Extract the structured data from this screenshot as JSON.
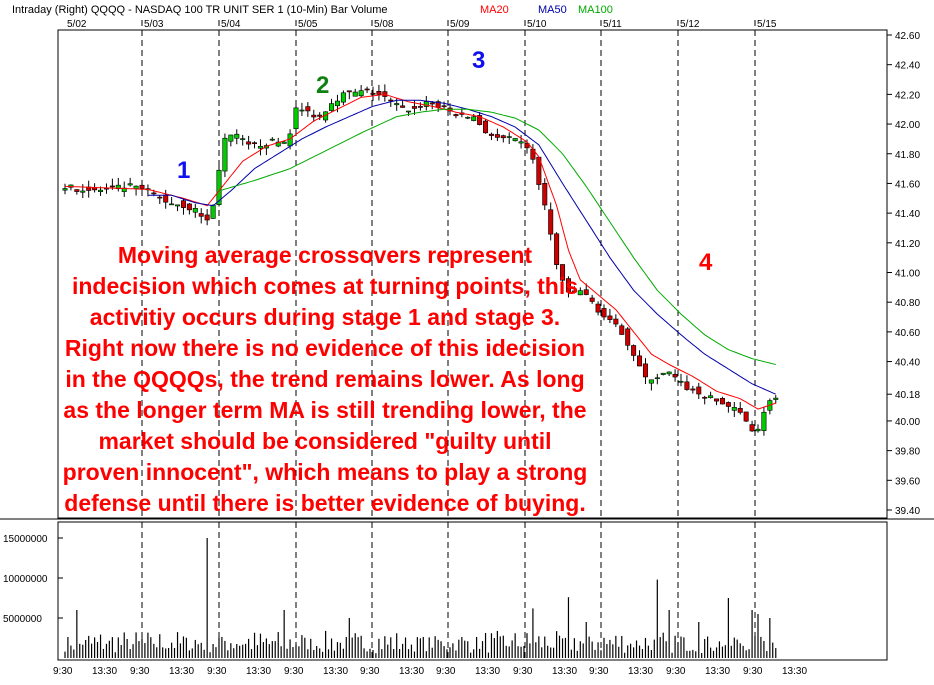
{
  "header": {
    "left": "Intraday  (Right)  QQQQ - NASDAQ 100 TR UNIT SER 1  (10-Min)  Bar  Volume",
    "ma_labels": [
      {
        "text": "MA20",
        "color": "#ff0000"
      },
      {
        "text": "MA50",
        "color": "#0000aa"
      },
      {
        "text": "MA100",
        "color": "#00aa00"
      }
    ]
  },
  "chart_data": {
    "type": "candlestick",
    "title": "Intraday (Right) QQQQ - NASDAQ 100 TR UNIT SER 1 (10-Min) Bar Volume",
    "date_labels": [
      "5/02",
      "5/03",
      "5/04",
      "5/05",
      "5/08",
      "5/09",
      "5/10",
      "5/11",
      "5/12",
      "5/15"
    ],
    "time_labels": [
      "9:30",
      "13:30",
      "9:30",
      "13:30",
      "9:30",
      "13:30",
      "9:30",
      "13:30",
      "9:30",
      "13:30",
      "9:30",
      "13:30",
      "9:30",
      "13:30",
      "9:30",
      "13:30",
      "9:30",
      "13:30",
      "9:30",
      "13:30"
    ],
    "price_axis": {
      "min": 39.4,
      "max": 42.6,
      "ticks": [
        "42.60",
        "42.40",
        "42.20",
        "42.00",
        "41.80",
        "41.60",
        "41.40",
        "41.20",
        "41.00",
        "40.80",
        "40.60",
        "40.40",
        "40.18",
        "40.00",
        "39.80",
        "39.60",
        "39.40"
      ]
    },
    "volume_axis": {
      "min": 0,
      "max": 17000000,
      "ticks": [
        "15000000",
        "10000000",
        "5000000"
      ]
    },
    "price_path": [
      [
        0,
        41.58
      ],
      [
        6,
        41.55
      ],
      [
        12,
        41.58
      ],
      [
        15,
        41.55
      ],
      [
        18,
        41.48
      ],
      [
        21,
        41.45
      ],
      [
        23,
        41.42
      ],
      [
        25,
        41.35
      ],
      [
        26,
        41.45
      ],
      [
        27,
        41.7
      ],
      [
        28,
        41.9
      ],
      [
        30,
        41.92
      ],
      [
        32,
        41.85
      ],
      [
        36,
        41.88
      ],
      [
        38,
        41.88
      ],
      [
        39,
        41.95
      ],
      [
        40,
        42.1
      ],
      [
        42,
        42.08
      ],
      [
        44,
        42.05
      ],
      [
        46,
        42.15
      ],
      [
        48,
        42.2
      ],
      [
        52,
        42.22
      ],
      [
        54,
        42.2
      ],
      [
        56,
        42.15
      ],
      [
        58,
        42.1
      ],
      [
        60,
        42.1
      ],
      [
        62,
        42.15
      ],
      [
        64,
        42.12
      ],
      [
        68,
        42.05
      ],
      [
        70,
        42.05
      ],
      [
        72,
        41.95
      ],
      [
        74,
        41.9
      ],
      [
        76,
        41.9
      ],
      [
        79,
        41.85
      ],
      [
        80,
        41.75
      ],
      [
        82,
        41.45
      ],
      [
        84,
        41.05
      ],
      [
        86,
        40.85
      ],
      [
        88,
        40.88
      ],
      [
        90,
        40.8
      ],
      [
        92,
        40.7
      ],
      [
        95,
        40.6
      ],
      [
        97,
        40.45
      ],
      [
        99,
        40.28
      ],
      [
        101,
        40.3
      ],
      [
        103,
        40.32
      ],
      [
        105,
        40.25
      ],
      [
        107,
        40.2
      ],
      [
        110,
        40.15
      ],
      [
        113,
        40.1
      ],
      [
        115,
        40.05
      ],
      [
        117,
        39.95
      ],
      [
        118,
        39.95
      ],
      [
        119,
        40.05
      ],
      [
        120,
        40.15
      ]
    ],
    "series": [
      {
        "name": "MA20",
        "color": "#ff0000",
        "values": [
          [
            0,
            41.58
          ],
          [
            14,
            41.56
          ],
          [
            20,
            41.5
          ],
          [
            24,
            41.45
          ],
          [
            27,
            41.6
          ],
          [
            30,
            41.75
          ],
          [
            34,
            41.85
          ],
          [
            38,
            41.9
          ],
          [
            42,
            42.02
          ],
          [
            46,
            42.1
          ],
          [
            50,
            42.18
          ],
          [
            54,
            42.2
          ],
          [
            58,
            42.15
          ],
          [
            62,
            42.12
          ],
          [
            66,
            42.08
          ],
          [
            70,
            42.05
          ],
          [
            74,
            41.98
          ],
          [
            78,
            41.88
          ],
          [
            80,
            41.78
          ],
          [
            83,
            41.45
          ],
          [
            85,
            41.15
          ],
          [
            87,
            40.95
          ],
          [
            90,
            40.85
          ],
          [
            93,
            40.75
          ],
          [
            96,
            40.6
          ],
          [
            99,
            40.45
          ],
          [
            102,
            40.38
          ],
          [
            106,
            40.3
          ],
          [
            110,
            40.2
          ],
          [
            114,
            40.15
          ],
          [
            117,
            40.08
          ],
          [
            120,
            40.12
          ]
        ]
      },
      {
        "name": "MA50",
        "color": "#0000aa",
        "values": [
          [
            14,
            41.52
          ],
          [
            18,
            41.52
          ],
          [
            22,
            41.47
          ],
          [
            25,
            41.45
          ],
          [
            28,
            41.55
          ],
          [
            32,
            41.7
          ],
          [
            36,
            41.8
          ],
          [
            40,
            41.9
          ],
          [
            44,
            41.98
          ],
          [
            48,
            42.05
          ],
          [
            52,
            42.12
          ],
          [
            56,
            42.16
          ],
          [
            60,
            42.16
          ],
          [
            64,
            42.14
          ],
          [
            68,
            42.1
          ],
          [
            72,
            42.05
          ],
          [
            76,
            41.98
          ],
          [
            80,
            41.86
          ],
          [
            84,
            41.6
          ],
          [
            88,
            41.35
          ],
          [
            92,
            41.1
          ],
          [
            96,
            40.88
          ],
          [
            100,
            40.72
          ],
          [
            104,
            40.58
          ],
          [
            108,
            40.45
          ],
          [
            112,
            40.35
          ],
          [
            116,
            40.25
          ],
          [
            120,
            40.18
          ]
        ]
      },
      {
        "name": "MA100",
        "color": "#00aa00",
        "values": [
          [
            26,
            41.55
          ],
          [
            32,
            41.62
          ],
          [
            38,
            41.7
          ],
          [
            44,
            41.82
          ],
          [
            50,
            41.94
          ],
          [
            56,
            42.05
          ],
          [
            60,
            42.08
          ],
          [
            64,
            42.1
          ],
          [
            68,
            42.1
          ],
          [
            72,
            42.08
          ],
          [
            76,
            42.04
          ],
          [
            80,
            41.96
          ],
          [
            84,
            41.8
          ],
          [
            88,
            41.58
          ],
          [
            92,
            41.34
          ],
          [
            96,
            41.1
          ],
          [
            100,
            40.88
          ],
          [
            104,
            40.72
          ],
          [
            108,
            40.58
          ],
          [
            112,
            40.48
          ],
          [
            116,
            40.42
          ],
          [
            120,
            40.38
          ]
        ]
      }
    ],
    "volume_spikes": [
      [
        2,
        6000000
      ],
      [
        24,
        15000000
      ],
      [
        37,
        6000000
      ],
      [
        48,
        5000000
      ],
      [
        79,
        6200000
      ],
      [
        85,
        7600000
      ],
      [
        88,
        4500000
      ],
      [
        100,
        9800000
      ],
      [
        102,
        6000000
      ],
      [
        107,
        4500000
      ],
      [
        112,
        7500000
      ],
      [
        116,
        6000000
      ],
      [
        117,
        5500000
      ],
      [
        119,
        5000000
      ]
    ]
  },
  "annotations": {
    "stages": [
      {
        "label": "1",
        "color": "#1010ee"
      },
      {
        "label": "2",
        "color": "#108010"
      },
      {
        "label": "3",
        "color": "#1010ee"
      },
      {
        "label": "4",
        "color": "#ff0000"
      }
    ],
    "note_lines": [
      "Moving average crossovers represent",
      "indecision which comes at turning points, this",
      "activitiy occurs during stage 1 and stage 3.",
      "Right now there is no evidence of this idecision",
      "in the QQQQs, the trend remains lower.  As long",
      "as the longer term MA is still trending lower, the",
      "market should be considered \"guilty until",
      "proven innocent\", which means to play a strong",
      "defense until there is better evidence of buying."
    ]
  }
}
